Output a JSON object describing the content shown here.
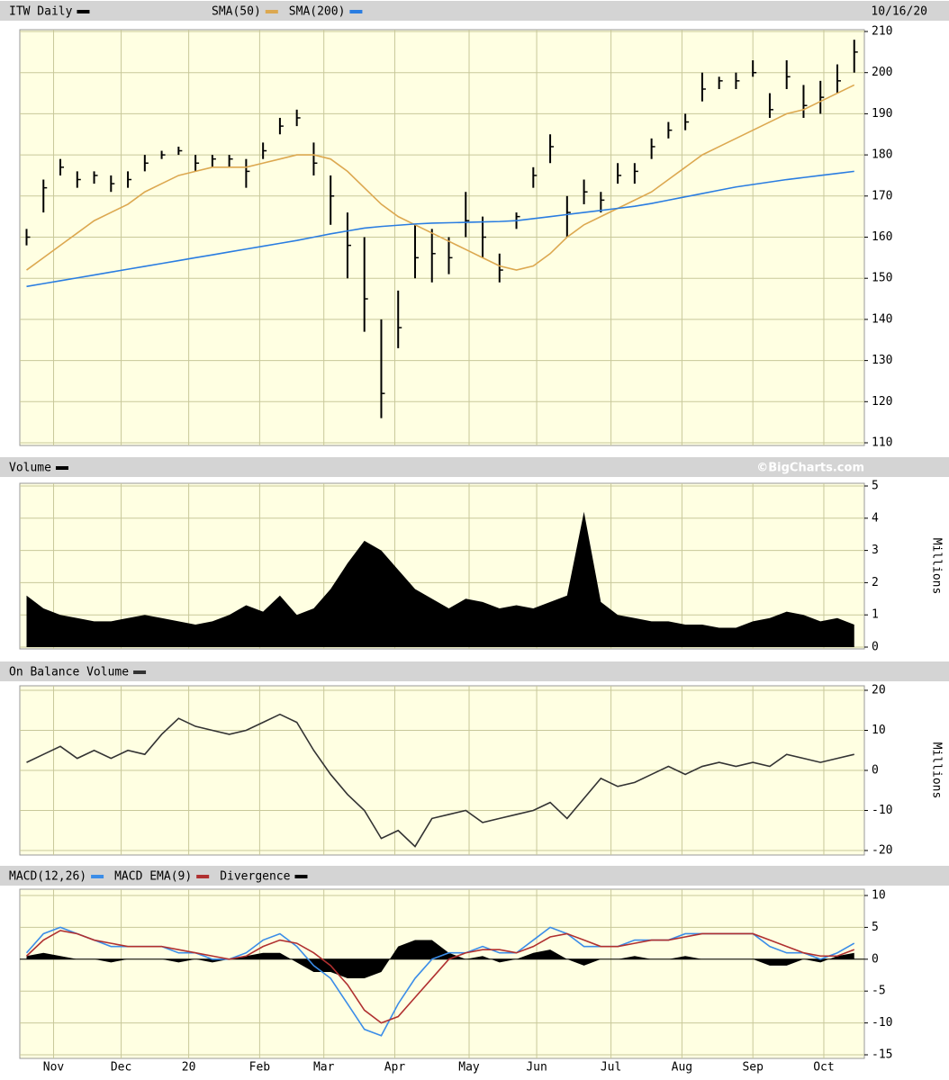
{
  "chart_data": [
    {
      "type": "ohlc",
      "date": "10/16/20",
      "x": [
        2,
        7,
        12,
        17,
        22,
        27,
        32,
        37,
        42,
        47,
        52,
        57,
        62,
        67,
        72,
        77,
        82,
        87,
        92,
        97,
        102,
        107,
        112,
        117,
        122,
        127,
        132,
        137,
        142,
        147,
        152,
        157,
        162,
        167,
        172,
        177,
        182,
        187,
        192,
        197,
        202,
        207,
        212,
        217,
        222,
        227,
        232,
        237,
        242,
        247
      ],
      "xlim": [
        0,
        250
      ],
      "ylim": [
        110,
        210
      ],
      "yticks": [
        210,
        200,
        190,
        180,
        170,
        160,
        150,
        140,
        130,
        120,
        110
      ],
      "grid": true,
      "series": [
        {
          "name": "ITW Daily",
          "color": "#000000",
          "high": [
            162,
            174,
            179,
            176,
            176,
            175,
            176,
            180,
            181,
            182,
            180,
            180,
            180,
            179,
            183,
            189,
            191,
            183,
            175,
            166,
            160,
            140,
            147,
            163,
            162,
            160,
            171,
            165,
            156,
            166,
            177,
            185,
            170,
            174,
            171,
            178,
            178,
            184,
            188,
            190,
            200,
            199,
            200,
            203,
            195,
            203,
            197,
            198,
            202,
            208
          ],
          "low": [
            158,
            166,
            175,
            172,
            173,
            171,
            172,
            176,
            179,
            180,
            176,
            177,
            177,
            172,
            179,
            185,
            187,
            175,
            163,
            150,
            137,
            116,
            133,
            150,
            149,
            151,
            160,
            155,
            149,
            162,
            172,
            178,
            160,
            168,
            166,
            173,
            173,
            179,
            184,
            186,
            193,
            196,
            196,
            199,
            189,
            196,
            189,
            190,
            195,
            200
          ],
          "close": [
            160,
            172,
            177,
            174,
            175,
            173,
            174,
            178,
            180,
            181,
            178,
            179,
            179,
            176,
            181,
            187,
            189,
            178,
            170,
            158,
            145,
            122,
            138,
            155,
            156,
            155,
            164,
            160,
            152,
            165,
            175,
            182,
            166,
            171,
            169,
            175,
            176,
            182,
            186,
            188,
            196,
            198,
            198,
            200,
            191,
            199,
            192,
            194,
            198,
            205
          ]
        },
        {
          "name": "SMA(50)",
          "color": "#dca850",
          "values": [
            152,
            155,
            158,
            161,
            164,
            166,
            168,
            171,
            173,
            175,
            176,
            177,
            177,
            177,
            178,
            179,
            180,
            180,
            179,
            176,
            172,
            168,
            165,
            163,
            161,
            159,
            157,
            155,
            153,
            152,
            153,
            156,
            160,
            163,
            165,
            167,
            169,
            171,
            174,
            177,
            180,
            182,
            184,
            186,
            188,
            190,
            191,
            193,
            195,
            197
          ]
        },
        {
          "name": "SMA(200)",
          "color": "#2a7de1",
          "values": [
            148,
            148.7,
            149.4,
            150.1,
            150.8,
            151.5,
            152.2,
            152.9,
            153.6,
            154.3,
            155,
            155.7,
            156.4,
            157.1,
            157.8,
            158.5,
            159.2,
            160,
            160.8,
            161.5,
            162.2,
            162.6,
            162.9,
            163.2,
            163.4,
            163.5,
            163.6,
            163.7,
            163.8,
            164,
            164.5,
            165,
            165.5,
            166,
            166.5,
            167,
            167.5,
            168.2,
            169,
            169.8,
            170.6,
            171.4,
            172.2,
            172.8,
            173.4,
            174,
            174.5,
            175,
            175.5,
            176
          ]
        }
      ]
    },
    {
      "type": "area",
      "credit": "©BigCharts.com",
      "ylabel": "Millions",
      "x": [
        2,
        7,
        12,
        17,
        22,
        27,
        32,
        37,
        42,
        47,
        52,
        57,
        62,
        67,
        72,
        77,
        82,
        87,
        92,
        97,
        102,
        107,
        112,
        117,
        122,
        127,
        132,
        137,
        142,
        147,
        152,
        157,
        162,
        167,
        172,
        177,
        182,
        187,
        192,
        197,
        202,
        207,
        212,
        217,
        222,
        227,
        232,
        237,
        242,
        247
      ],
      "xlim": [
        0,
        250
      ],
      "ylim": [
        0,
        5
      ],
      "yticks": [
        5,
        4,
        3,
        2,
        1,
        0
      ],
      "grid": true,
      "series": [
        {
          "name": "Volume",
          "color": "#000000",
          "values": [
            1.6,
            1.2,
            1.0,
            0.9,
            0.8,
            0.8,
            0.9,
            1.0,
            0.9,
            0.8,
            0.7,
            0.8,
            1.0,
            1.3,
            1.1,
            1.6,
            1.0,
            1.2,
            1.8,
            2.6,
            3.3,
            3.0,
            2.4,
            1.8,
            1.5,
            1.2,
            1.5,
            1.4,
            1.2,
            1.3,
            1.2,
            1.4,
            1.6,
            4.2,
            1.4,
            1.0,
            0.9,
            0.8,
            0.8,
            0.7,
            0.7,
            0.6,
            0.6,
            0.8,
            0.9,
            1.1,
            1.0,
            0.8,
            0.9,
            0.7
          ]
        }
      ]
    },
    {
      "type": "line",
      "ylabel": "Millions",
      "x": [
        2,
        7,
        12,
        17,
        22,
        27,
        32,
        37,
        42,
        47,
        52,
        57,
        62,
        67,
        72,
        77,
        82,
        87,
        92,
        97,
        102,
        107,
        112,
        117,
        122,
        127,
        132,
        137,
        142,
        147,
        152,
        157,
        162,
        167,
        172,
        177,
        182,
        187,
        192,
        197,
        202,
        207,
        212,
        217,
        222,
        227,
        232,
        237,
        242,
        247
      ],
      "xlim": [
        0,
        250
      ],
      "ylim": [
        -20,
        20
      ],
      "yticks": [
        20,
        10,
        0,
        -10,
        -20
      ],
      "grid": true,
      "series": [
        {
          "name": "On Balance Volume",
          "color": "#333333",
          "values": [
            2,
            4,
            6,
            3,
            5,
            3,
            5,
            4,
            9,
            13,
            11,
            10,
            9,
            10,
            12,
            14,
            12,
            5,
            -1,
            -6,
            -10,
            -17,
            -15,
            -19,
            -12,
            -11,
            -10,
            -13,
            -12,
            -11,
            -10,
            -8,
            -12,
            -7,
            -2,
            -4,
            -3,
            -1,
            1,
            -1,
            1,
            2,
            1,
            2,
            1,
            4,
            3,
            2,
            3,
            4
          ]
        }
      ]
    },
    {
      "type": "line",
      "x": [
        2,
        7,
        12,
        17,
        22,
        27,
        32,
        37,
        42,
        47,
        52,
        57,
        62,
        67,
        72,
        77,
        82,
        87,
        92,
        97,
        102,
        107,
        112,
        117,
        122,
        127,
        132,
        137,
        142,
        147,
        152,
        157,
        162,
        167,
        172,
        177,
        182,
        187,
        192,
        197,
        202,
        207,
        212,
        217,
        222,
        227,
        232,
        237,
        242,
        247
      ],
      "xlim": [
        0,
        250
      ],
      "ylim": [
        -15,
        10
      ],
      "yticks": [
        10,
        5,
        0,
        -5,
        -10,
        -15
      ],
      "grid": true,
      "xticks": [
        {
          "value": 10,
          "label": "Nov"
        },
        {
          "value": 30,
          "label": "Dec"
        },
        {
          "value": 50,
          "label": "20"
        },
        {
          "value": 71,
          "label": "Feb"
        },
        {
          "value": 90,
          "label": "Mar"
        },
        {
          "value": 111,
          "label": "Apr"
        },
        {
          "value": 133,
          "label": "May"
        },
        {
          "value": 153,
          "label": "Jun"
        },
        {
          "value": 175,
          "label": "Jul"
        },
        {
          "value": 196,
          "label": "Aug"
        },
        {
          "value": 217,
          "label": "Sep"
        },
        {
          "value": 238,
          "label": "Oct"
        }
      ],
      "series": [
        {
          "name": "MACD(12,26)",
          "color": "#3b8de8",
          "values": [
            1,
            4,
            5,
            4,
            3,
            2,
            2,
            2,
            2,
            1,
            1,
            0,
            0,
            1,
            3,
            4,
            2,
            -1,
            -3,
            -7,
            -11,
            -12,
            -7,
            -3,
            0,
            1,
            1,
            2,
            1,
            1,
            3,
            5,
            4,
            2,
            2,
            2,
            3,
            3,
            3,
            4,
            4,
            4,
            4,
            4,
            2,
            1,
            1,
            0,
            1,
            2.5
          ]
        },
        {
          "name": "MACD EMA(9)",
          "color": "#b03030",
          "values": [
            0.5,
            3,
            4.5,
            4,
            3,
            2.5,
            2,
            2,
            2,
            1.5,
            1,
            0.5,
            0,
            0.5,
            2,
            3,
            2.5,
            1,
            -1,
            -4,
            -8,
            -10,
            -9,
            -6,
            -3,
            0,
            1,
            1.5,
            1.5,
            1,
            2,
            3.5,
            4,
            3,
            2,
            2,
            2.5,
            3,
            3,
            3.5,
            4,
            4,
            4,
            4,
            3,
            2,
            1,
            0.5,
            0.5,
            1.5
          ]
        },
        {
          "name": "Divergence",
          "color": "#000000",
          "type": "area",
          "values": [
            0.5,
            1,
            0.5,
            0,
            0,
            -0.5,
            0,
            0,
            0,
            -0.5,
            0,
            -0.5,
            0,
            0.5,
            1,
            1,
            -0.5,
            -2,
            -2,
            -3,
            -3,
            -2,
            2,
            3,
            3,
            1,
            0,
            0.5,
            -0.5,
            0,
            1,
            1.5,
            0,
            -1,
            0,
            0,
            0.5,
            0,
            0,
            0.5,
            0,
            0,
            0,
            0,
            -1,
            -1,
            0,
            -0.5,
            0.5,
            1
          ]
        }
      ]
    }
  ]
}
